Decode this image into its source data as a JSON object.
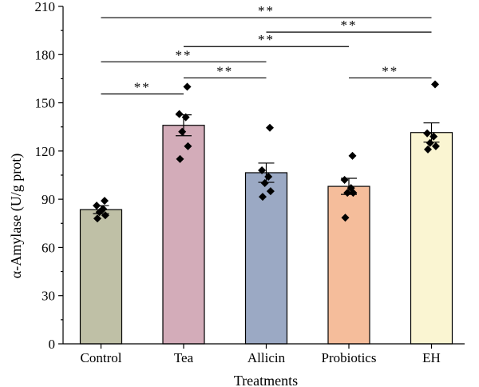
{
  "chart_data": {
    "type": "bar",
    "xlabel": "Treatments",
    "ylabel": "α-Amylase (U/g prot)",
    "ylim": [
      0,
      210
    ],
    "yticks": [
      0,
      30,
      60,
      90,
      120,
      150,
      180,
      210
    ],
    "categories": [
      "Control",
      "Tea",
      "Allicin",
      "Probiotics",
      "EH"
    ],
    "values": [
      83.5,
      136,
      106.5,
      98,
      131.5
    ],
    "errors": [
      2.5,
      6.5,
      6,
      5,
      6
    ],
    "colors": [
      "#bfc0a6",
      "#d3acb9",
      "#9ba9c4",
      "#f5bd9b",
      "#faf5d2"
    ],
    "points": [
      [
        89,
        86,
        84,
        82,
        80,
        78
      ],
      [
        160,
        143,
        141,
        132,
        123,
        115
      ],
      [
        134.5,
        108,
        104,
        100,
        95,
        91.5
      ],
      [
        117,
        102,
        97,
        94,
        94,
        78.5
      ],
      [
        161.5,
        131,
        129,
        125,
        123,
        121
      ]
    ],
    "significance": [
      {
        "from": 0,
        "to": 4,
        "y": 203,
        "label": "**"
      },
      {
        "from": 2,
        "to": 4,
        "y": 194,
        "label": "**"
      },
      {
        "from": 1,
        "to": 3,
        "y": 185,
        "label": "**"
      },
      {
        "from": 0,
        "to": 2,
        "y": 175.5,
        "label": "**"
      },
      {
        "from": 1,
        "to": 2,
        "y": 165.5,
        "label": "**"
      },
      {
        "from": 3,
        "to": 4,
        "y": 165.5,
        "label": "**"
      },
      {
        "from": 0,
        "to": 1,
        "y": 155.5,
        "label": "**"
      }
    ]
  }
}
